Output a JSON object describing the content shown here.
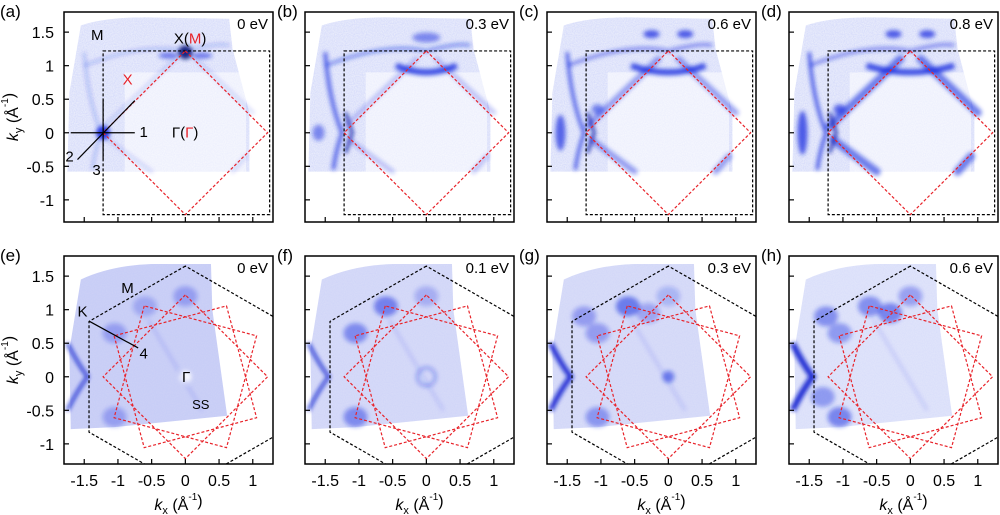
{
  "chart_data": {
    "type": "heatmap",
    "description": "ARPES constant-energy maps (8 panels)",
    "xlabel": {
      "main": "k",
      "sub": "x",
      "unit": "(Å",
      "exp": "-1",
      "close": ")"
    },
    "ylabel": {
      "main": "k",
      "sub": "y",
      "unit": "(Å",
      "exp": "-1",
      "close": ")"
    },
    "xlim": [
      -1.8,
      1.3
    ],
    "ylim_top": [
      -1.33,
      1.8
    ],
    "ylim_bottom": [
      -1.3,
      1.8
    ],
    "xticks": [
      -1.5,
      -1,
      -0.5,
      0,
      0.5,
      1
    ],
    "xtick_labels": [
      "-1.5",
      "-1",
      "-0.5",
      "0",
      "0.5",
      "1"
    ],
    "yticks": [
      -1,
      -0.5,
      0,
      0.5,
      1,
      1.5
    ],
    "ytick_labels": [
      "-1",
      "-0.5",
      "0",
      "0.5",
      "1",
      "1.5"
    ],
    "colors": {
      "intensity": "#1a2ee0",
      "bz_black": "#000000",
      "bz_red": "#e8232a"
    },
    "panels": [
      {
        "id": "a",
        "label": "(a)",
        "energy": "0 eV",
        "row": "top",
        "stage": 0
      },
      {
        "id": "b",
        "label": "(b)",
        "energy": "0.3 eV",
        "row": "top",
        "stage": 1
      },
      {
        "id": "c",
        "label": "(c)",
        "energy": "0.6 eV",
        "row": "top",
        "stage": 2
      },
      {
        "id": "d",
        "label": "(d)",
        "energy": "0.8 eV",
        "row": "top",
        "stage": 3
      },
      {
        "id": "e",
        "label": "(e)",
        "energy": "0 eV",
        "row": "bottom",
        "stage": 0
      },
      {
        "id": "f",
        "label": "(f)",
        "energy": "0.1 eV",
        "row": "bottom",
        "stage": 1
      },
      {
        "id": "g",
        "label": "(g)",
        "energy": "0.3 eV",
        "row": "bottom",
        "stage": 2
      },
      {
        "id": "h",
        "label": "(h)",
        "energy": "0.6 eV",
        "row": "bottom",
        "stage": 3
      }
    ],
    "top_row_bz": {
      "black_square": {
        "kx": [
          -1.22,
          1.25
        ],
        "ky": [
          -1.22,
          1.22
        ]
      },
      "red_diamond": [
        [
          0,
          1.22
        ],
        [
          1.22,
          0
        ],
        [
          0,
          -1.22
        ],
        [
          -1.22,
          0
        ]
      ]
    },
    "bottom_row_bz": {
      "black_hexagon_radius": 1.65,
      "red_three_squares_radius": 1.22,
      "red_squares_rotations_deg": [
        0,
        30,
        60
      ]
    },
    "annotations_a": {
      "M": "M",
      "X_red": "X",
      "XM_black": "X(",
      "XM_red": "M",
      "XM_close": ")",
      "Gamma_black": "Γ(",
      "Gamma_red": "Γ",
      "Gamma_close": ")",
      "cut1": "1",
      "cut2": "2",
      "cut3": "3"
    },
    "annotations_e": {
      "M": "M",
      "K": "K",
      "cut4": "4",
      "Gamma": "Γ",
      "ss": "SS"
    }
  }
}
